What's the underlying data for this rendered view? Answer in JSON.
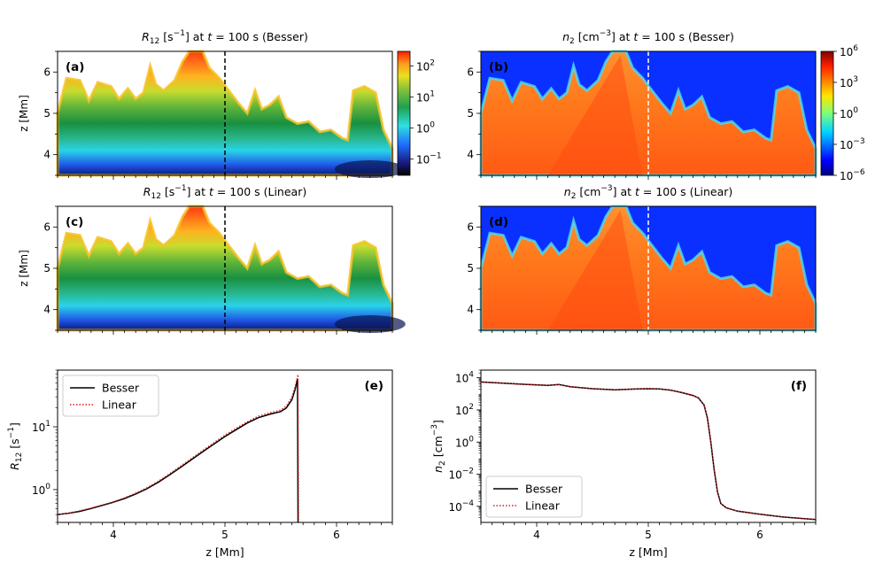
{
  "colors": {
    "axis": "#000000",
    "besser_line": "#000000",
    "linear_line": "#e41a1c",
    "marker_r12": "#000000",
    "marker_n2": "#ffffff",
    "panel_label_light": "#ffffff"
  },
  "chart_data": [
    {
      "id": "a",
      "type": "heatmap",
      "label": "(a)",
      "quantity": "R12",
      "title_var": "R",
      "title_sub": "12",
      "title_unit": " [s",
      "title_unit_sup": "−1",
      "title_rest": "] at ",
      "title_t": "t",
      "title_eq": " = 100 s (Besser)",
      "ylabel": "z [Mm]",
      "xlim": [
        3.5,
        6.5
      ],
      "ylim": [
        3.5,
        6.5
      ],
      "yticks": [
        "4",
        "5",
        "6"
      ],
      "marker_x": 5.0,
      "colorscale": "spectral_dark",
      "colorbar": {
        "scale": "log",
        "range": [
          0.03,
          300
        ],
        "ticks": [
          {
            "base": "10",
            "exp": "2",
            "value": 100
          },
          {
            "base": "10",
            "exp": "1",
            "value": 10
          },
          {
            "base": "10",
            "exp": "0",
            "value": 1
          },
          {
            "base": "10",
            "exp": "−1",
            "value": 0.1
          }
        ]
      }
    },
    {
      "id": "b",
      "type": "heatmap",
      "label": "(b)",
      "quantity": "n2",
      "title_var": "n",
      "title_sub": "2",
      "title_unit": " [cm",
      "title_unit_sup": "−3",
      "title_rest": "] at ",
      "title_t": "t",
      "title_eq": " = 100 s (Besser)",
      "ylabel": "",
      "xlim": [
        3.5,
        6.5
      ],
      "ylim": [
        3.5,
        6.5
      ],
      "yticks": [
        "4",
        "5",
        "6"
      ],
      "marker_x": 5.0,
      "colorscale": "jet",
      "colorbar": {
        "scale": "log",
        "range": [
          1e-06,
          1000000.0
        ],
        "ticks": [
          {
            "base": "10",
            "exp": "6",
            "value": 1000000.0
          },
          {
            "base": "10",
            "exp": "3",
            "value": 1000.0
          },
          {
            "base": "10",
            "exp": "0",
            "value": 1
          },
          {
            "base": "10",
            "exp": "−3",
            "value": 0.001
          },
          {
            "base": "10",
            "exp": "−6",
            "value": 1e-06
          }
        ]
      }
    },
    {
      "id": "c",
      "type": "heatmap",
      "label": "(c)",
      "quantity": "R12",
      "title_var": "R",
      "title_sub": "12",
      "title_unit": " [s",
      "title_unit_sup": "−1",
      "title_rest": "] at ",
      "title_t": "t",
      "title_eq": " = 100 s (Linear)",
      "ylabel": "z [Mm]",
      "xlim": [
        3.5,
        6.5
      ],
      "ylim": [
        3.5,
        6.5
      ],
      "yticks": [
        "4",
        "5",
        "6"
      ],
      "marker_x": 5.0,
      "colorscale": "spectral_dark"
    },
    {
      "id": "d",
      "type": "heatmap",
      "label": "(d)",
      "quantity": "n2",
      "title_var": "n",
      "title_sub": "2",
      "title_unit": " [cm",
      "title_unit_sup": "−3",
      "title_rest": "] at ",
      "title_t": "t",
      "title_eq": " = 100 s (Linear)",
      "ylabel": "",
      "xlim": [
        3.5,
        6.5
      ],
      "ylim": [
        3.5,
        6.5
      ],
      "yticks": [
        "4",
        "5",
        "6"
      ],
      "marker_x": 5.0,
      "colorscale": "jet"
    },
    {
      "id": "e",
      "type": "line",
      "label": "(e)",
      "xlabel": "z [Mm]",
      "ylabel_var": "R",
      "ylabel_sub": "12",
      "ylabel_unit": " [s",
      "ylabel_sup": "−1",
      "ylabel_end": "]",
      "xlim": [
        3.5,
        6.5
      ],
      "ylim": [
        0.3,
        80
      ],
      "yscale": "log",
      "xticks": [
        "4",
        "5",
        "6"
      ],
      "yticks": [
        {
          "base": "10",
          "exp": "1",
          "value": 10
        },
        {
          "base": "10",
          "exp": "0",
          "value": 1
        }
      ],
      "legend": "top-left",
      "series": [
        {
          "name": "Besser",
          "style": "solid",
          "x": [
            3.5,
            3.6,
            3.7,
            3.8,
            3.9,
            4.0,
            4.1,
            4.2,
            4.3,
            4.4,
            4.5,
            4.6,
            4.7,
            4.8,
            4.9,
            5.0,
            5.1,
            5.2,
            5.3,
            5.4,
            5.5,
            5.55,
            5.6,
            5.63,
            5.65,
            5.652,
            5.655
          ],
          "y": [
            0.4,
            0.42,
            0.45,
            0.5,
            0.56,
            0.63,
            0.72,
            0.85,
            1.03,
            1.3,
            1.7,
            2.25,
            3.0,
            4.0,
            5.3,
            7.0,
            9.0,
            11.5,
            14.0,
            15.8,
            17.5,
            20.0,
            27.0,
            40.0,
            58.0,
            5.0,
            0.3
          ]
        },
        {
          "name": "Linear",
          "style": "dotted",
          "x": [
            3.5,
            3.6,
            3.7,
            3.8,
            3.9,
            4.0,
            4.1,
            4.2,
            4.3,
            4.4,
            4.5,
            4.6,
            4.7,
            4.8,
            4.9,
            5.0,
            5.1,
            5.2,
            5.3,
            5.4,
            5.5,
            5.55,
            5.6,
            5.63,
            5.655,
            5.657,
            5.66
          ],
          "y": [
            0.4,
            0.42,
            0.46,
            0.51,
            0.57,
            0.64,
            0.74,
            0.88,
            1.07,
            1.35,
            1.77,
            2.35,
            3.15,
            4.2,
            5.6,
            7.4,
            9.5,
            12.1,
            14.8,
            16.7,
            18.5,
            21.5,
            30.0,
            45.0,
            68.0,
            5.0,
            0.3
          ]
        }
      ]
    },
    {
      "id": "f",
      "type": "line",
      "label": "(f)",
      "xlabel": "z [Mm]",
      "ylabel_var": "n",
      "ylabel_sub": "2",
      "ylabel_unit": " [cm",
      "ylabel_sup": "−3",
      "ylabel_end": "]",
      "xlim": [
        3.5,
        6.5
      ],
      "ylim": [
        1e-05,
        30000.0
      ],
      "yscale": "log",
      "xticks": [
        "4",
        "5",
        "6"
      ],
      "yticks": [
        {
          "base": "10",
          "exp": "4",
          "value": 10000.0
        },
        {
          "base": "10",
          "exp": "2",
          "value": 100.0
        },
        {
          "base": "10",
          "exp": "0",
          "value": 1
        },
        {
          "base": "10",
          "exp": "−2",
          "value": 0.01
        },
        {
          "base": "10",
          "exp": "−4",
          "value": 0.0001
        }
      ],
      "legend": "bottom-left",
      "series": [
        {
          "name": "Besser",
          "style": "solid",
          "x": [
            3.5,
            3.7,
            3.9,
            4.1,
            4.2,
            4.3,
            4.5,
            4.7,
            4.9,
            5.0,
            5.1,
            5.2,
            5.3,
            5.4,
            5.45,
            5.5,
            5.53,
            5.56,
            5.59,
            5.62,
            5.65,
            5.7,
            5.8,
            6.0,
            6.2,
            6.5
          ],
          "y": [
            5500,
            4600,
            3900,
            3400,
            3800,
            2800,
            2100,
            1800,
            2000,
            2100,
            2000,
            1700,
            1200,
            800,
            550,
            200,
            30,
            1,
            0.02,
            0.0008,
            0.00015,
            8e-05,
            5e-05,
            3.2e-05,
            2.2e-05,
            1.5e-05
          ]
        },
        {
          "name": "Linear",
          "style": "dotted",
          "x": [
            3.5,
            3.7,
            3.9,
            4.1,
            4.2,
            4.3,
            4.5,
            4.7,
            4.9,
            5.0,
            5.1,
            5.2,
            5.3,
            5.4,
            5.45,
            5.5,
            5.53,
            5.56,
            5.59,
            5.62,
            5.65,
            5.7,
            5.8,
            6.0,
            6.2,
            6.5
          ],
          "y": [
            5500,
            4600,
            3900,
            3400,
            3800,
            2800,
            2100,
            1800,
            2000,
            2100,
            2000,
            1700,
            1200,
            800,
            550,
            200,
            30,
            1,
            0.02,
            0.0008,
            0.00015,
            8e-05,
            5e-05,
            3.2e-05,
            2.2e-05,
            1.5e-05
          ]
        }
      ]
    }
  ]
}
